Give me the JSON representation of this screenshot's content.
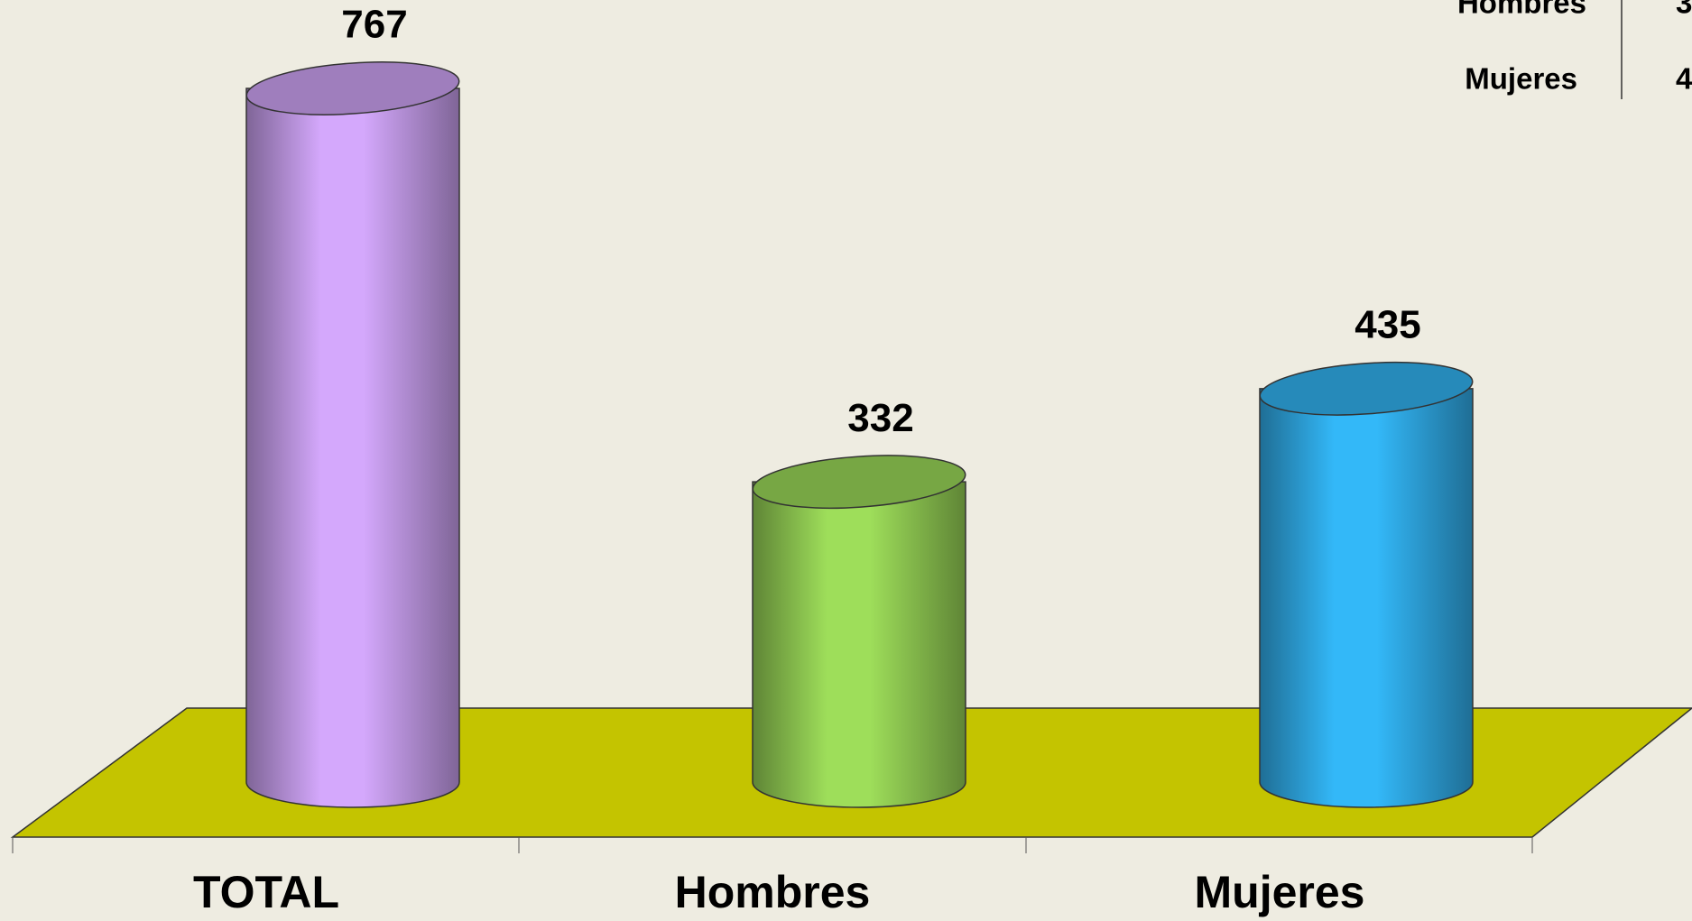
{
  "chart_data": {
    "type": "bar",
    "categories": [
      "TOTAL",
      "Hombres",
      "Mujeres"
    ],
    "values": [
      767,
      332,
      435
    ],
    "colors": [
      "#d4a8fc",
      "#9ede5a",
      "#33b8f8"
    ]
  }
}
